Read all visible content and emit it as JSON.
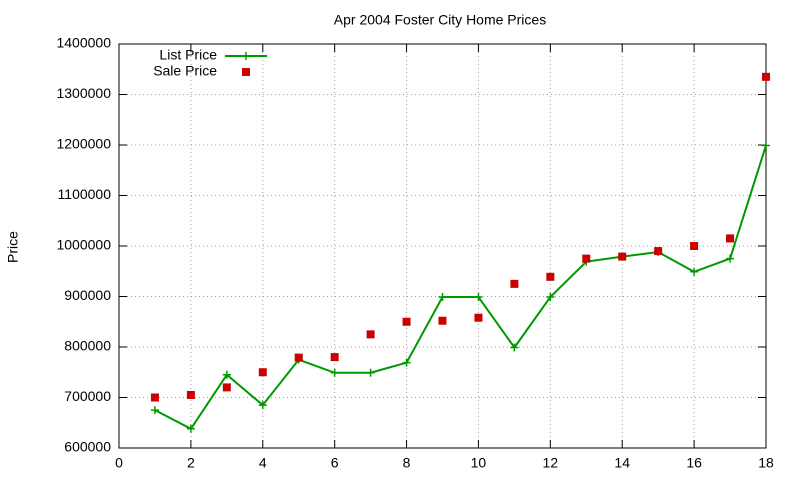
{
  "chart_data": {
    "type": "line",
    "title": "Apr 2004 Foster City Home Prices",
    "y_label": "Price",
    "x": [
      1,
      2,
      3,
      4,
      5,
      6,
      7,
      8,
      9,
      10,
      11,
      12,
      13,
      14,
      15,
      16,
      17,
      18
    ],
    "series": [
      {
        "name": "List Price",
        "color": "#009900",
        "style": "linespoints",
        "values": [
          675000,
          638000,
          745000,
          685000,
          775000,
          749000,
          749000,
          769000,
          899000,
          899000,
          799000,
          899000,
          969000,
          979000,
          988000,
          949000,
          975000,
          1199000
        ]
      },
      {
        "name": "Sale Price",
        "color": "#cc0000",
        "style": "points",
        "values": [
          700000,
          705000,
          720000,
          750000,
          779000,
          780000,
          825000,
          850000,
          852000,
          858000,
          925000,
          939000,
          975000,
          979000,
          990000,
          1000000,
          1015000,
          1335000
        ]
      }
    ],
    "xlim": [
      0,
      18
    ],
    "xticks": [
      0,
      2,
      4,
      6,
      8,
      10,
      12,
      14,
      16,
      18
    ],
    "ylim": [
      600000,
      1400000
    ],
    "yticks": [
      600000,
      700000,
      800000,
      900000,
      1000000,
      1100000,
      1200000,
      1300000,
      1400000
    ],
    "grid": true,
    "legend": "top-left"
  }
}
